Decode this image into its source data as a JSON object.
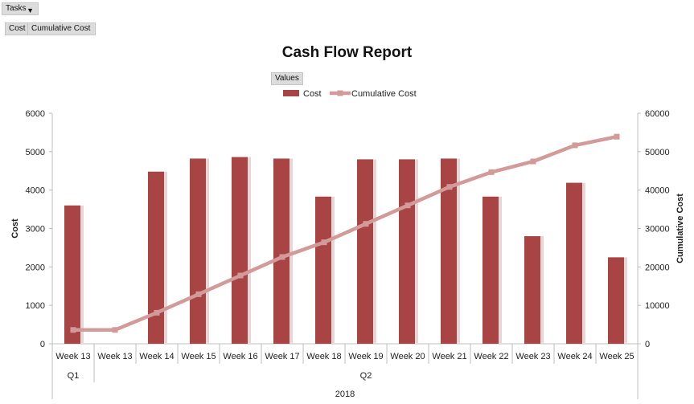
{
  "filters": {
    "tasks_label": "Tasks",
    "row_fields": [
      "Cost",
      "Cumulative Cost"
    ],
    "values_label": "Values"
  },
  "colors": {
    "cost": "#a84444",
    "cumulative": "#d39a9a"
  },
  "chart_data": {
    "type": "bar",
    "title": "Cash Flow Report",
    "categories": [
      "Week 13",
      "Week 13",
      "Week 14",
      "Week 15",
      "Week 16",
      "Week 17",
      "Week 18",
      "Week 19",
      "Week 20",
      "Week 21",
      "Week 22",
      "Week 23",
      "Week 24",
      "Week 25"
    ],
    "quarter_groups": [
      {
        "label": "Q1",
        "count": 1
      },
      {
        "label": "Q2",
        "count": 13
      }
    ],
    "year_label": "2018",
    "series": [
      {
        "name": "Cost",
        "type": "bar",
        "axis": "left",
        "values": [
          3600,
          0,
          4480,
          4820,
          4860,
          4820,
          3830,
          4800,
          4800,
          4820,
          3830,
          2800,
          4190,
          2250
        ]
      },
      {
        "name": "Cumulative Cost",
        "type": "line",
        "axis": "right",
        "values": [
          3600,
          3600,
          8080,
          12900,
          17760,
          22580,
          26410,
          31210,
          36010,
          40830,
          44660,
          47460,
          51650,
          53900
        ]
      }
    ],
    "ylabel": "Cost",
    "y2label": "Cumulative Cost",
    "ylim": [
      0,
      6000
    ],
    "y2lim": [
      0,
      60000
    ],
    "yticks": [
      0,
      1000,
      2000,
      3000,
      4000,
      5000,
      6000
    ],
    "y2ticks": [
      0,
      10000,
      20000,
      30000,
      40000,
      50000,
      60000
    ],
    "legend_position": "top-center",
    "grid": false
  }
}
